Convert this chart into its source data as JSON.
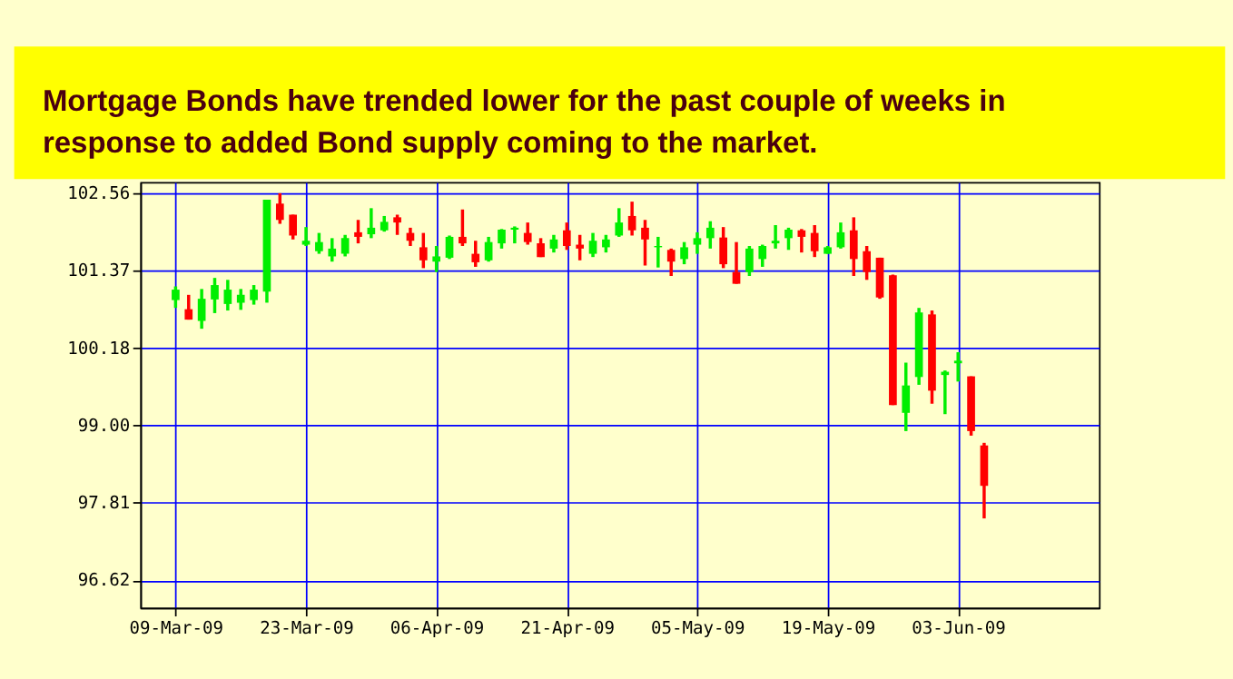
{
  "chart_data": {
    "type": "candlestick",
    "title": "Mortgage Bonds have trended lower for the past couple of weeks in response to added Bond supply coming to the market.",
    "categories": [
      "09-Mar-09",
      null,
      null,
      null,
      null,
      null,
      null,
      null,
      null,
      null,
      "23-Mar-09",
      null,
      null,
      null,
      null,
      null,
      null,
      null,
      null,
      null,
      "06-Apr-09",
      null,
      null,
      null,
      null,
      null,
      null,
      null,
      null,
      null,
      "21-Apr-09",
      null,
      null,
      null,
      null,
      null,
      null,
      null,
      null,
      null,
      "05-May-09",
      null,
      null,
      null,
      null,
      null,
      null,
      null,
      null,
      null,
      "19-May-09",
      null,
      null,
      null,
      null,
      null,
      null,
      null,
      null,
      null,
      "03-Jun-09",
      null,
      null
    ],
    "ohlc": [
      [
        100.92,
        101.13,
        100.8,
        101.08
      ],
      [
        100.78,
        101.0,
        100.62,
        100.62
      ],
      [
        100.6,
        101.09,
        100.48,
        100.94
      ],
      [
        100.93,
        101.26,
        100.72,
        101.15
      ],
      [
        100.86,
        101.23,
        100.76,
        101.08
      ],
      [
        100.88,
        101.09,
        100.77,
        101.0
      ],
      [
        100.92,
        101.15,
        100.85,
        101.08
      ],
      [
        101.05,
        102.46,
        100.88,
        102.46
      ],
      [
        102.4,
        102.56,
        102.09,
        102.15
      ],
      [
        102.23,
        102.23,
        101.85,
        101.91
      ],
      [
        101.77,
        102.04,
        101.75,
        101.83
      ],
      [
        101.67,
        101.95,
        101.63,
        101.81
      ],
      [
        101.59,
        101.87,
        101.51,
        101.71
      ],
      [
        101.63,
        101.92,
        101.59,
        101.87
      ],
      [
        101.96,
        102.15,
        101.79,
        101.89
      ],
      [
        101.93,
        102.33,
        101.87,
        102.03
      ],
      [
        101.99,
        102.21,
        101.97,
        102.12
      ],
      [
        102.19,
        102.23,
        101.92,
        102.11
      ],
      [
        101.95,
        102.03,
        101.75,
        101.83
      ],
      [
        101.73,
        101.95,
        101.41,
        101.53
      ],
      [
        101.51,
        101.75,
        101.35,
        101.59
      ],
      [
        101.57,
        101.91,
        101.55,
        101.89
      ],
      [
        101.89,
        102.31,
        101.75,
        101.79
      ],
      [
        101.63,
        101.83,
        101.43,
        101.5
      ],
      [
        101.53,
        101.89,
        101.51,
        101.81
      ],
      [
        101.79,
        102.01,
        101.71,
        102.0
      ],
      [
        102.0,
        102.05,
        101.79,
        102.03
      ],
      [
        101.95,
        102.11,
        101.77,
        101.81
      ],
      [
        101.79,
        101.87,
        101.58,
        101.58
      ],
      [
        101.71,
        101.92,
        101.65,
        101.85
      ],
      [
        101.99,
        102.11,
        101.69,
        101.75
      ],
      [
        101.77,
        101.92,
        101.53,
        101.71
      ],
      [
        101.63,
        101.95,
        101.58,
        101.83
      ],
      [
        101.73,
        101.92,
        101.65,
        101.85
      ],
      [
        101.91,
        102.33,
        101.89,
        102.11
      ],
      [
        102.21,
        102.43,
        101.91,
        101.99
      ],
      [
        102.03,
        102.15,
        101.45,
        101.85
      ],
      [
        101.73,
        101.89,
        101.42,
        101.75
      ],
      [
        101.69,
        101.71,
        101.29,
        101.51
      ],
      [
        101.55,
        101.81,
        101.47,
        101.73
      ],
      [
        101.77,
        101.96,
        101.63,
        101.87
      ],
      [
        101.87,
        102.13,
        101.71,
        102.03
      ],
      [
        101.88,
        102.04,
        101.41,
        101.47
      ],
      [
        101.35,
        101.81,
        101.17,
        101.17
      ],
      [
        101.35,
        101.75,
        101.29,
        101.71
      ],
      [
        101.55,
        101.77,
        101.43,
        101.75
      ],
      [
        101.79,
        102.07,
        101.71,
        101.83
      ],
      [
        101.87,
        102.03,
        101.69,
        102.0
      ],
      [
        101.99,
        102.01,
        101.65,
        101.89
      ],
      [
        101.95,
        102.07,
        101.58,
        101.67
      ],
      [
        101.63,
        101.75,
        101.63,
        101.73
      ],
      [
        101.73,
        102.11,
        101.71,
        101.96
      ],
      [
        101.99,
        102.19,
        101.29,
        101.55
      ],
      [
        101.67,
        101.75,
        101.23,
        101.35
      ],
      [
        101.57,
        101.57,
        100.94,
        100.96
      ],
      [
        101.3,
        101.31,
        99.31,
        99.31
      ],
      [
        99.19,
        99.96,
        98.91,
        99.61
      ],
      [
        99.74,
        100.8,
        99.62,
        100.73
      ],
      [
        100.7,
        100.76,
        99.33,
        99.53
      ],
      [
        99.77,
        99.84,
        99.17,
        99.82
      ],
      [
        99.95,
        100.12,
        99.67,
        99.99
      ],
      [
        99.75,
        99.75,
        98.84,
        98.91
      ],
      [
        98.69,
        98.73,
        97.57,
        98.07
      ]
    ],
    "colors": [
      "#00ee00",
      "#ff0000",
      "#00ee00",
      "#00ee00",
      "#00ee00",
      "#00ee00",
      "#00ee00",
      "#00ee00",
      "#ff0000",
      "#ff0000",
      "#00ee00",
      "#00ee00",
      "#00ee00",
      "#00ee00",
      "#ff0000",
      "#00ee00",
      "#00ee00",
      "#ff0000",
      "#ff0000",
      "#ff0000",
      "#00ee00",
      "#00ee00",
      "#ff0000",
      "#ff0000",
      "#00ee00",
      "#00ee00",
      "#00ee00",
      "#ff0000",
      "#ff0000",
      "#00ee00",
      "#ff0000",
      "#ff0000",
      "#00ee00",
      "#00ee00",
      "#00ee00",
      "#ff0000",
      "#ff0000",
      "#00ee00",
      "#ff0000",
      "#00ee00",
      "#00ee00",
      "#00ee00",
      "#ff0000",
      "#ff0000",
      "#00ee00",
      "#00ee00",
      "#00ee00",
      "#00ee00",
      "#ff0000",
      "#ff0000",
      "#00ee00",
      "#00ee00",
      "#ff0000",
      "#ff0000",
      "#ff0000",
      "#ff0000",
      "#00ee00",
      "#00ee00",
      "#ff0000",
      "#00ee00",
      "#00ee00",
      "#ff0000",
      "#ff0000"
    ],
    "ylim": [
      96.2,
      102.73
    ],
    "yticks": [
      96.62,
      97.81,
      {
        "value": 99,
        "label": "99.00"
      },
      100.18,
      101.37,
      102.56
    ],
    "grid": true
  }
}
